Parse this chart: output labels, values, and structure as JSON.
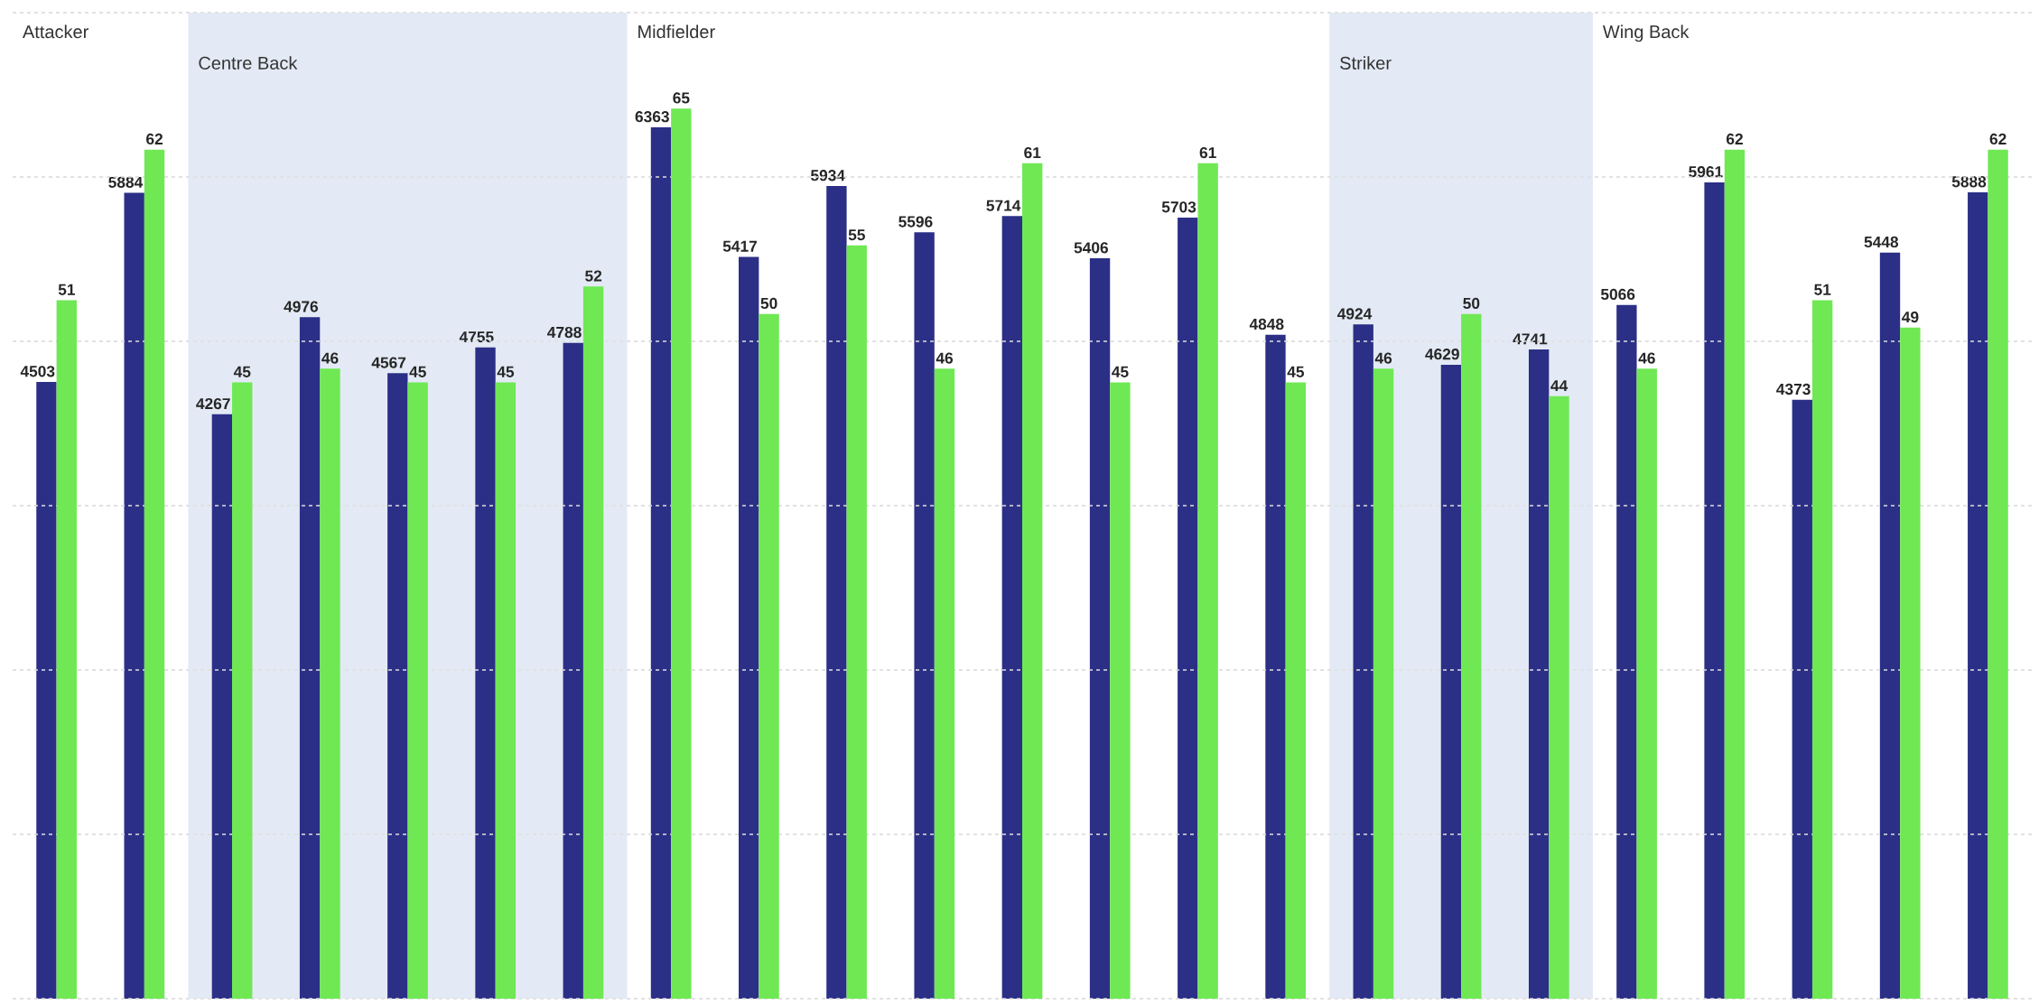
{
  "chart_data": [
    {
      "type": "bar",
      "categories": [
        null,
        null,
        null,
        null,
        null,
        null,
        null,
        null,
        null,
        null,
        null,
        null,
        null,
        null,
        null,
        null,
        null,
        null,
        null,
        null,
        null,
        null,
        null
      ],
      "series": [
        {
          "color": "#2b2f86",
          "values": [
            4503,
            5884,
            4267,
            4976,
            4567,
            4755,
            4788,
            6363,
            5417,
            5934,
            5596,
            5714,
            5406,
            5703,
            4848,
            4924,
            4629,
            4741,
            5066,
            5961,
            4373,
            5448,
            5888
          ]
        }
      ],
      "ylim": [
        0,
        7200
      ],
      "yticks": [
        {
          "value": 0,
          "label": null
        },
        {
          "value": 1200,
          "label": null
        },
        {
          "value": 2400,
          "label": null
        },
        {
          "value": 3600,
          "label": null
        },
        {
          "value": 4800,
          "label": null
        },
        {
          "value": 6000,
          "label": null
        },
        {
          "value": 7200,
          "label": null
        }
      ],
      "grid": "y",
      "data_labels": true,
      "annotations": [
        "Attacker",
        "Centre Back",
        "Midfielder",
        "Striker",
        "Wing Back"
      ]
    },
    {
      "type": "bar",
      "categories": [
        null,
        null,
        null,
        null,
        null,
        null,
        null,
        null,
        null,
        null,
        null,
        null,
        null,
        null,
        null,
        null,
        null,
        null,
        null,
        null,
        null,
        null,
        null
      ],
      "series": [
        {
          "color": "#6fe854",
          "values": [
            51,
            62,
            45,
            46,
            45,
            45,
            52,
            65,
            50,
            55,
            46,
            61,
            45,
            61,
            45,
            46,
            50,
            44,
            46,
            62,
            51,
            49,
            62
          ]
        }
      ],
      "ylim": [
        0,
        72
      ],
      "yticks": [
        {
          "value": 0,
          "label": null
        },
        {
          "value": 12,
          "label": null
        },
        {
          "value": 24,
          "label": null
        },
        {
          "value": 36,
          "label": null
        },
        {
          "value": 48,
          "label": null
        },
        {
          "value": 60,
          "label": null
        },
        {
          "value": 72,
          "label": null
        }
      ],
      "grid": "y",
      "data_labels": true
    }
  ]
}
